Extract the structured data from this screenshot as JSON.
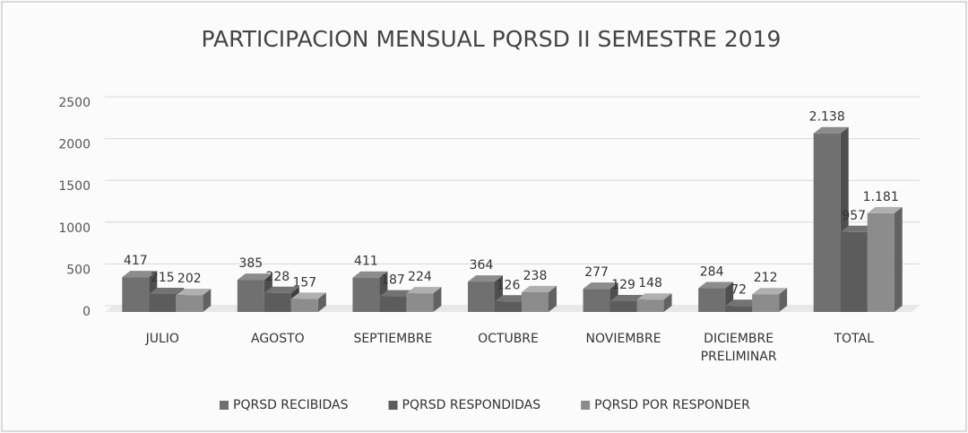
{
  "chart_data": {
    "type": "bar3d",
    "title": "PARTICIPACION MENSUAL PQRSD  II SEMESTRE 2019",
    "categories": [
      "JULIO",
      "AGOSTO",
      "SEPTIEMBRE",
      "OCTUBRE",
      "NOVIEMBRE",
      "DICIEMBRE PRELIMINAR",
      "TOTAL"
    ],
    "series": [
      {
        "name": "PQRSD RECIBIDAS",
        "color": "#707070",
        "values": [
          417,
          385,
          411,
          364,
          277,
          284,
          2138
        ],
        "value_labels": [
          "417",
          "385",
          "411",
          "364",
          "277",
          "284",
          "2.138"
        ]
      },
      {
        "name": "PQRSD RESPONDIDAS",
        "color": "#5c5c5c",
        "values": [
          215,
          228,
          187,
          126,
          129,
          72,
          957
        ]
      },
      {
        "name": "PQRSD POR RESPONDER",
        "color": "#8c8c8c",
        "values": [
          202,
          157,
          224,
          238,
          148,
          212,
          1181
        ],
        "value_labels": [
          "202",
          "157",
          "224",
          "238",
          "148",
          "212",
          "1.181"
        ]
      }
    ],
    "ylim": [
      0,
      2500
    ],
    "yticks": [
      0,
      500,
      1000,
      1500,
      2000,
      2500
    ],
    "grid": true,
    "legend": "bottom"
  }
}
